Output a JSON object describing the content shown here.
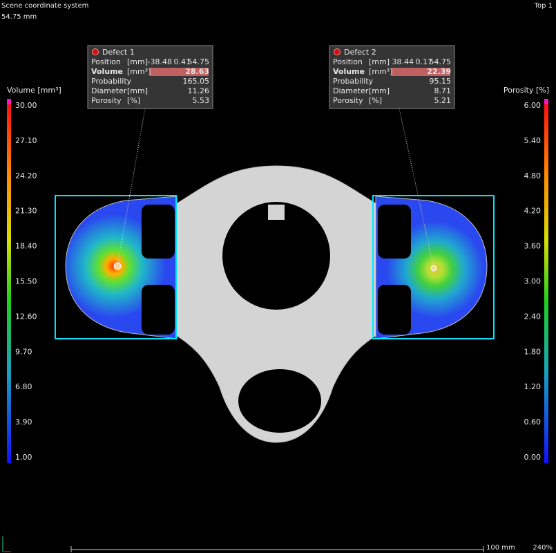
{
  "header": {
    "left_title": "Scene coordinate system",
    "left_value": "54.75 mm",
    "right_title": "Top 1"
  },
  "defects": [
    {
      "title": "Defect 1",
      "rows": [
        {
          "label": "Position",
          "unit": "[mm]",
          "values": [
            "-38.48",
            "0.41",
            "54.75"
          ]
        },
        {
          "label": "Volume",
          "unit": "[mm³]",
          "values": [
            "28.63"
          ]
        },
        {
          "label": "Probability",
          "unit": "",
          "values": [
            "165.05"
          ]
        },
        {
          "label": "Diameter",
          "unit": "[mm]",
          "values": [
            "11.26"
          ]
        },
        {
          "label": "Porosity",
          "unit": "[%]",
          "values": [
            "5.53"
          ]
        }
      ]
    },
    {
      "title": "Defect 2",
      "rows": [
        {
          "label": "Position",
          "unit": "[mm]",
          "values": [
            "38.44",
            "0.17",
            "54.75"
          ]
        },
        {
          "label": "Volume",
          "unit": "[mm³]",
          "values": [
            "22.39"
          ]
        },
        {
          "label": "Probability",
          "unit": "",
          "values": [
            "95.15"
          ]
        },
        {
          "label": "Diameter",
          "unit": "[mm]",
          "values": [
            "8.71"
          ]
        },
        {
          "label": "Porosity",
          "unit": "[%]",
          "values": [
            "5.21"
          ]
        }
      ]
    }
  ],
  "left_scale": {
    "title": "Volume [mm³]",
    "ticks": [
      "30.00",
      "27.10",
      "24.20",
      "21.30",
      "18.40",
      "15.50",
      "12.60",
      "9.70",
      "6.80",
      "3.90",
      "1.00"
    ]
  },
  "right_scale": {
    "title": "Porosity [%]",
    "ticks": [
      "6.00",
      "5.40",
      "4.80",
      "4.20",
      "3.60",
      "3.00",
      "2.40",
      "1.80",
      "1.20",
      "0.60",
      "0.00"
    ]
  },
  "footer": {
    "scale_label": "100 mm",
    "zoom": "240%"
  }
}
